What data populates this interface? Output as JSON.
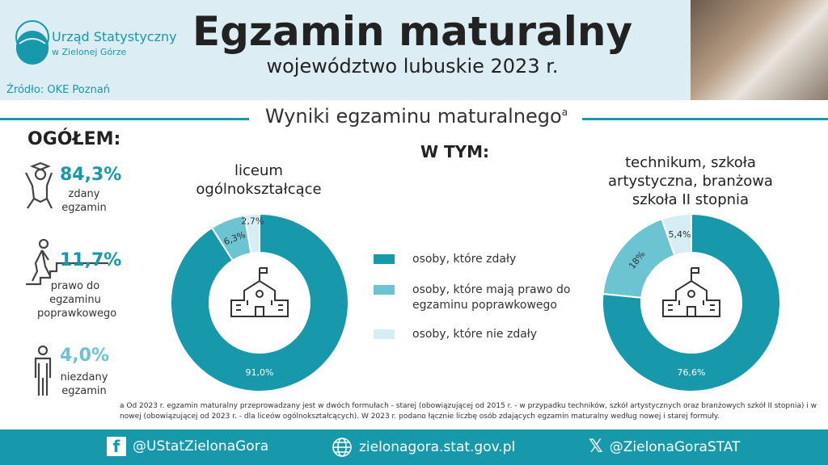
{
  "header": {
    "org_line1": "Urząd Statystyczny",
    "org_line2": "w Zielonej Górze",
    "source": "Źródło: OKE Poznań",
    "title": "Egzamin maturalny",
    "subtitle": "województwo lubuskie 2023 r."
  },
  "section": {
    "title": "Wyniki egzaminu maturalnego",
    "footnote_mark": "a"
  },
  "overall": {
    "heading": "OGÓŁEM:",
    "items": [
      {
        "value": "84,3%",
        "label": "zdany egzamin",
        "color": "#1899ab"
      },
      {
        "value": "11,7%",
        "label": "prawo do egzaminu poprawkowego",
        "color": "#1899ab"
      },
      {
        "value": "4,0%",
        "label": "niezdany egzamin",
        "color": "#6cc4d3"
      }
    ]
  },
  "wtym": "W TYM:",
  "legend": [
    {
      "label": "osoby, które zdały",
      "color": "#1899ab"
    },
    {
      "label": "osoby, które mają prawo do egzaminu poprawkowego",
      "color": "#6cc4d3"
    },
    {
      "label": "osoby, które nie zdały",
      "color": "#d5edf3"
    }
  ],
  "chart_data": [
    {
      "type": "pie",
      "title": "liceum ogólnokształcące",
      "categories": [
        "osoby, które zdały",
        "osoby, które mają prawo do egzaminu poprawkowego",
        "osoby, które nie zdały"
      ],
      "values": [
        91.0,
        6.3,
        2.7
      ],
      "labels": [
        "91,0%",
        "6,3%",
        "2,7%"
      ]
    },
    {
      "type": "pie",
      "title": "technikum, szkoła artystyczna, branżowa szkoła II stopnia",
      "categories": [
        "osoby, które zdały",
        "osoby, które mają prawo do egzaminu poprawkowego",
        "osoby, które nie zdały"
      ],
      "values": [
        76.6,
        18,
        5.4
      ],
      "labels": [
        "76,6%",
        "18%",
        "5,4%"
      ]
    }
  ],
  "footnote": "a Od 2023 r. egzamin maturalny przeprowadzany jest w dwóch formułach - starej (obowiązującej od 2015 r. - w przypadku techników, szkół artystycznych oraz branżowych szkół II stopnia) i w nowej (obowiązującej od 2023 r. - dla liceów ogólnokształcących). W 2023 r. podano łącznie liczbę osób zdających egzamin maturalny według nowej i starej formuły.",
  "footer": {
    "facebook": "@UStatZielonaGora",
    "website": "zielonagora.stat.gov.pl",
    "x": "@ZielonaGoraSTAT"
  }
}
